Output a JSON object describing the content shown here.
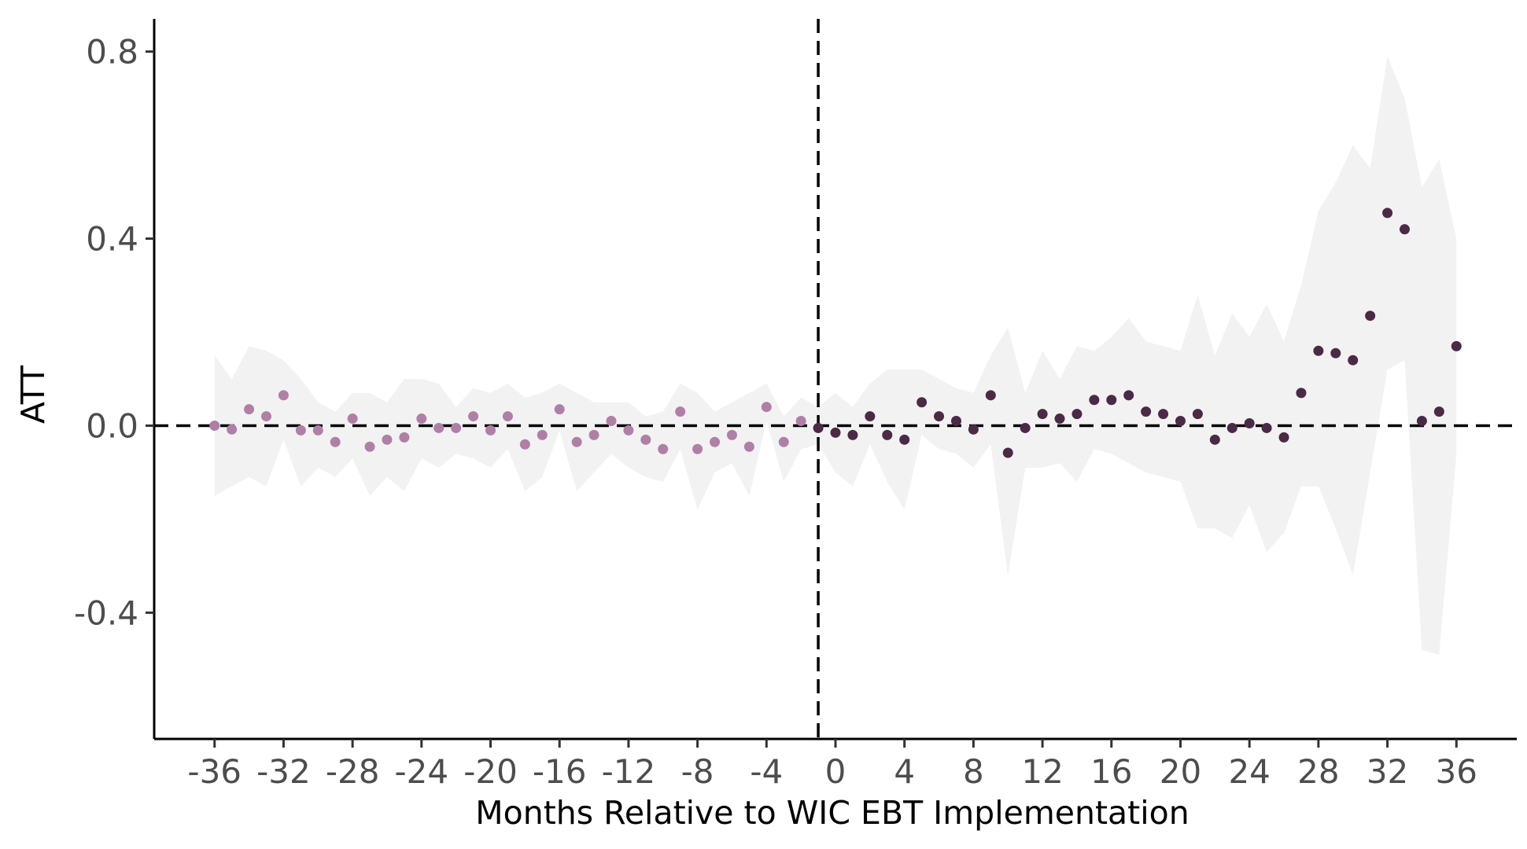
{
  "chart_data": {
    "type": "scatter",
    "title": "",
    "xlabel": "Months Relative to WIC EBT Implementation",
    "ylabel": "ATT",
    "xlim": [
      -39.5,
      39.5
    ],
    "ylim": [
      -0.67,
      0.87
    ],
    "x_ticks": [
      -36,
      -32,
      -28,
      -24,
      -20,
      -16,
      -12,
      -8,
      -4,
      0,
      4,
      8,
      12,
      16,
      20,
      24,
      28,
      32,
      36
    ],
    "y_ticks": [
      -0.4,
      0.0,
      0.4,
      0.8
    ],
    "x_tick_labels": [
      "-36",
      "-32",
      "-28",
      "-24",
      "-20",
      "-16",
      "-12",
      "-8",
      "-4",
      "0",
      "4",
      "8",
      "12",
      "16",
      "20",
      "24",
      "28",
      "32",
      "36"
    ],
    "y_tick_labels": [
      "-0.4",
      "0.0",
      "0.4",
      "0.8"
    ],
    "reference_lines": {
      "vertical_x": -1,
      "horizontal_y": 0
    },
    "grid": false,
    "legend": "none",
    "colors": {
      "pre": "#b07fa6",
      "post": "#4a2a45",
      "band": "#f2f2f2",
      "axis": "#000000"
    },
    "series": [
      {
        "x": [
          -36,
          -35,
          -34,
          -33,
          -32,
          -31,
          -30,
          -29,
          -28,
          -27,
          -26,
          -25,
          -24,
          -23,
          -22,
          -21,
          -20,
          -19,
          -18,
          -17,
          -16,
          -15,
          -14,
          -13,
          -12,
          -11,
          -10,
          -9,
          -8,
          -7,
          -6,
          -5,
          -4,
          -3,
          -2
        ],
        "values": [
          0.0,
          -0.008,
          0.035,
          0.02,
          0.065,
          -0.01,
          -0.01,
          -0.035,
          0.015,
          -0.045,
          -0.03,
          -0.025,
          0.015,
          -0.005,
          -0.005,
          0.02,
          -0.01,
          0.02,
          -0.04,
          -0.02,
          0.035,
          -0.035,
          -0.02,
          0.01,
          -0.01,
          -0.03,
          -0.05,
          0.03,
          -0.05,
          -0.035,
          -0.02,
          -0.045,
          0.04,
          -0.035,
          0.01
        ]
      },
      {
        "x": [
          -1,
          0,
          1,
          2,
          3,
          4,
          5,
          6,
          7,
          8,
          9,
          10,
          11,
          12,
          13,
          14,
          15,
          16,
          17,
          18,
          19,
          20,
          21,
          22,
          23,
          24,
          25,
          26,
          27,
          28,
          29,
          30,
          31,
          32,
          33,
          34,
          35,
          36
        ],
        "values": [
          -0.005,
          -0.015,
          -0.02,
          0.02,
          -0.02,
          -0.03,
          0.05,
          0.02,
          0.01,
          -0.008,
          0.065,
          -0.058,
          -0.005,
          0.025,
          0.015,
          0.025,
          0.055,
          0.055,
          0.065,
          0.03,
          0.025,
          0.01,
          0.025,
          -0.03,
          -0.005,
          0.005,
          -0.005,
          -0.025,
          0.07,
          0.16,
          0.155,
          0.14,
          0.235,
          0.455,
          0.42,
          0.01,
          0.03,
          0.17
        ]
      }
    ],
    "confidence_band": {
      "x": [
        -36,
        -35,
        -34,
        -33,
        -32,
        -31,
        -30,
        -29,
        -28,
        -27,
        -26,
        -25,
        -24,
        -23,
        -22,
        -21,
        -20,
        -19,
        -18,
        -17,
        -16,
        -15,
        -14,
        -13,
        -12,
        -11,
        -10,
        -9,
        -8,
        -7,
        -6,
        -5,
        -4,
        -3,
        -2,
        -1,
        0,
        1,
        2,
        3,
        4,
        5,
        6,
        7,
        8,
        9,
        10,
        11,
        12,
        13,
        14,
        15,
        16,
        17,
        18,
        19,
        20,
        21,
        22,
        23,
        24,
        25,
        26,
        27,
        28,
        29,
        30,
        31,
        32,
        33,
        34,
        35,
        36
      ],
      "lower": [
        -0.15,
        -0.13,
        -0.11,
        -0.13,
        -0.03,
        -0.13,
        -0.09,
        -0.11,
        -0.07,
        -0.15,
        -0.11,
        -0.14,
        -0.07,
        -0.09,
        -0.06,
        -0.07,
        -0.09,
        -0.05,
        -0.14,
        -0.11,
        -0.01,
        -0.14,
        -0.1,
        -0.06,
        -0.09,
        -0.11,
        -0.12,
        -0.05,
        -0.18,
        -0.1,
        -0.08,
        -0.15,
        0.01,
        -0.12,
        -0.05,
        -0.04,
        -0.1,
        -0.13,
        -0.04,
        -0.12,
        -0.18,
        -0.02,
        -0.05,
        -0.06,
        -0.09,
        -0.04,
        -0.32,
        -0.09,
        -0.09,
        -0.08,
        -0.12,
        -0.05,
        -0.06,
        -0.08,
        -0.1,
        -0.11,
        -0.12,
        -0.22,
        -0.22,
        -0.24,
        -0.17,
        -0.27,
        -0.23,
        -0.13,
        -0.13,
        -0.22,
        -0.32,
        -0.1,
        0.12,
        0.14,
        -0.48,
        -0.49,
        -0.06
      ],
      "upper": [
        0.15,
        0.1,
        0.17,
        0.16,
        0.14,
        0.1,
        0.05,
        0.03,
        0.07,
        0.07,
        0.05,
        0.1,
        0.1,
        0.09,
        0.04,
        0.08,
        0.07,
        0.09,
        0.06,
        0.07,
        0.09,
        0.07,
        0.05,
        0.05,
        0.05,
        0.02,
        0.03,
        0.09,
        0.07,
        0.03,
        0.05,
        0.07,
        0.09,
        0.02,
        0.06,
        0.04,
        0.07,
        0.04,
        0.09,
        0.12,
        0.12,
        0.12,
        0.1,
        0.08,
        0.07,
        0.15,
        0.21,
        0.07,
        0.16,
        0.1,
        0.17,
        0.16,
        0.19,
        0.23,
        0.18,
        0.17,
        0.16,
        0.28,
        0.15,
        0.24,
        0.19,
        0.26,
        0.18,
        0.3,
        0.46,
        0.52,
        0.6,
        0.55,
        0.79,
        0.7,
        0.51,
        0.57,
        0.4
      ]
    }
  }
}
